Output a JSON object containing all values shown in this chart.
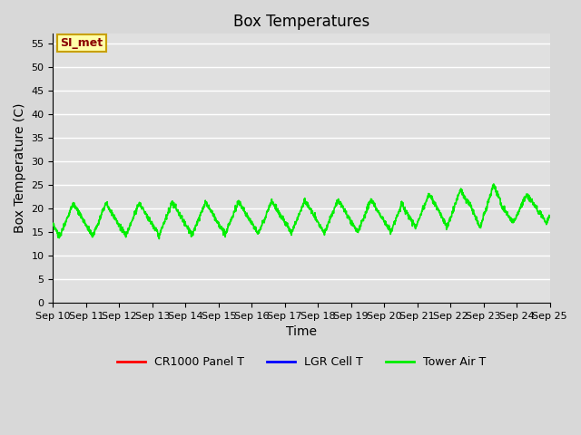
{
  "title": "Box Temperatures",
  "xlabel": "Time",
  "ylabel": "Box Temperature (C)",
  "ylim": [
    0,
    57
  ],
  "yticks": [
    0,
    5,
    10,
    15,
    20,
    25,
    30,
    35,
    40,
    45,
    50,
    55
  ],
  "x_labels": [
    "Sep 10",
    "Sep 11",
    "Sep 12",
    "Sep 13",
    "Sep 14",
    "Sep 15",
    "Sep 16",
    "Sep 17",
    "Sep 18",
    "Sep 19",
    "Sep 20",
    "Sep 21",
    "Sep 22",
    "Sep 23",
    "Sep 24",
    "Sep 25"
  ],
  "background_color": "#d8d8d8",
  "plot_bg_color": "#e0e0e0",
  "grid_color": "#ffffff",
  "annotation_text": "SI_met",
  "annotation_color": "#8B0000",
  "annotation_bg": "#ffffaa",
  "annotation_border": "#c8a000",
  "legend_entries": [
    "CR1000 Panel T",
    "LGR Cell T",
    "Tower Air T"
  ],
  "line_colors": [
    "#ff0000",
    "#0000ff",
    "#00ee00"
  ],
  "title_fontsize": 12,
  "axis_fontsize": 10,
  "tick_fontsize": 8
}
